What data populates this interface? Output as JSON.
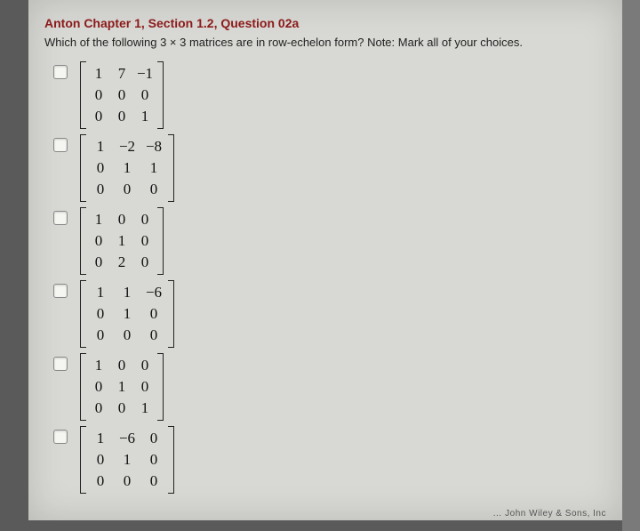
{
  "title": "Anton Chapter 1, Section 1.2, Question 02a",
  "prompt": "Which of the following 3 × 3 matrices are in row-echelon form? Note: Mark all of your choices.",
  "title_color": "#8b1a1a",
  "background_color": "#d8d8d4",
  "text_color": "#222222",
  "matrix_font": "Times New Roman, serif",
  "choices": [
    {
      "rows": [
        [
          "1",
          "7",
          "−1"
        ],
        [
          "0",
          "0",
          "0"
        ],
        [
          "0",
          "0",
          "1"
        ]
      ],
      "col_class": ""
    },
    {
      "rows": [
        [
          "1",
          "−2",
          "−8"
        ],
        [
          "0",
          "1",
          "1"
        ],
        [
          "0",
          "0",
          "0"
        ]
      ],
      "col_class": "wide"
    },
    {
      "rows": [
        [
          "1",
          "0",
          "0"
        ],
        [
          "0",
          "1",
          "0"
        ],
        [
          "0",
          "2",
          "0"
        ]
      ],
      "col_class": ""
    },
    {
      "rows": [
        [
          "1",
          "1",
          "−6"
        ],
        [
          "0",
          "1",
          "0"
        ],
        [
          "0",
          "0",
          "0"
        ]
      ],
      "col_class": "wide"
    },
    {
      "rows": [
        [
          "1",
          "0",
          "0"
        ],
        [
          "0",
          "1",
          "0"
        ],
        [
          "0",
          "0",
          "1"
        ]
      ],
      "col_class": ""
    },
    {
      "rows": [
        [
          "1",
          "−6",
          "0"
        ],
        [
          "0",
          "1",
          "0"
        ],
        [
          "0",
          "0",
          "0"
        ]
      ],
      "col_class": "wide"
    }
  ],
  "footer": "… John Wiley & Sons, Inc"
}
